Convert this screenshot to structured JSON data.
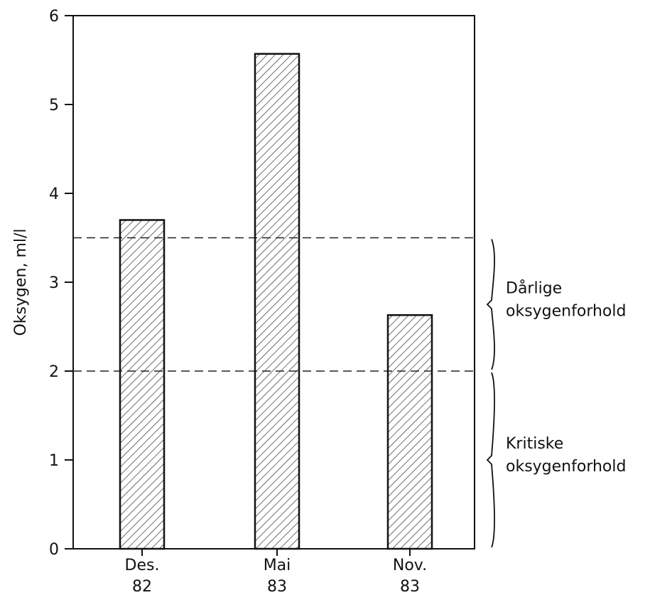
{
  "chart_data": {
    "type": "bar",
    "title": "",
    "xlabel": "",
    "ylabel": "Oksygen, ml/l",
    "ylim": [
      0,
      6
    ],
    "yticks": [
      "0",
      "1",
      "2",
      "3",
      "4",
      "5",
      "6"
    ],
    "categories": [
      {
        "line1": "Des.",
        "line2": "82"
      },
      {
        "line1": "Mai",
        "line2": "83"
      },
      {
        "line1": "Nov.",
        "line2": "83"
      }
    ],
    "values": [
      3.7,
      5.57,
      2.63
    ],
    "bar_fill": "hatched",
    "reference_lines": [
      {
        "y": 3.5,
        "style": "dashed"
      },
      {
        "y": 2.0,
        "style": "dashed"
      }
    ],
    "zones": [
      {
        "range": [
          2.0,
          3.5
        ],
        "line1": "Dårlige",
        "line2": "oksygenforhold"
      },
      {
        "range": [
          0.0,
          2.0
        ],
        "line1": "Kritiske",
        "line2": "oksygenforhold"
      }
    ],
    "grid": false,
    "legend": "none",
    "colors": {
      "ink": "#111111",
      "background": "#ffffff"
    }
  }
}
